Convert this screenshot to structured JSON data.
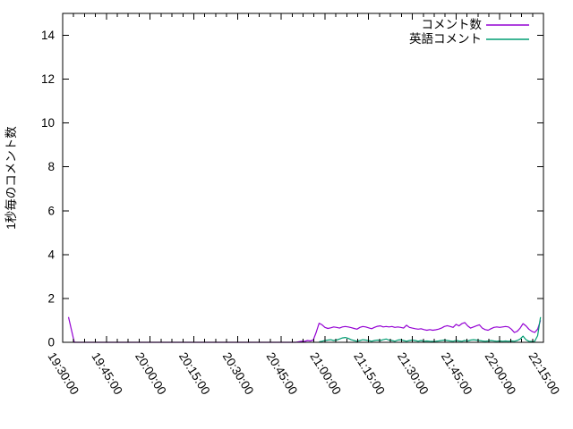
{
  "chart_data": {
    "type": "line",
    "title": "",
    "xlabel": "",
    "ylabel": "1秒毎のコメント数",
    "ylim": [
      0,
      15
    ],
    "ytick_values": [
      0,
      2,
      4,
      6,
      8,
      10,
      12,
      14
    ],
    "x_ticks": [
      "19:30:00",
      "19:45:00",
      "20:00:00",
      "20:15:00",
      "20:30:00",
      "20:45:00",
      "21:00:00",
      "21:15:00",
      "21:30:00",
      "21:45:00",
      "22:00:00",
      "22:15:00"
    ],
    "x_minor_divisions": 4,
    "x_tick_rotation_deg": 58,
    "grid": false,
    "legend_position": "top-right-inside",
    "background_color": "#ffffff",
    "axis_color": "#000000",
    "series": [
      {
        "name": "コメント数",
        "color": "#9400d3",
        "points": [
          [
            "19:32:00",
            1.15
          ],
          [
            "19:34:00",
            0
          ],
          [
            "19:40:00",
            0
          ],
          [
            "19:50:00",
            0
          ],
          [
            "20:00:00",
            0
          ],
          [
            "20:10:00",
            0
          ],
          [
            "20:20:00",
            0
          ],
          [
            "20:30:00",
            0
          ],
          [
            "20:40:00",
            0
          ],
          [
            "20:50:00",
            0
          ],
          [
            "20:52:00",
            0.05
          ],
          [
            "20:53:00",
            0.04
          ],
          [
            "20:54:00",
            0.08
          ],
          [
            "20:55:00",
            0.06
          ],
          [
            "20:56:00",
            0.1
          ],
          [
            "20:57:00",
            0.45
          ],
          [
            "20:58:00",
            0.87
          ],
          [
            "20:59:00",
            0.8
          ],
          [
            "21:00:00",
            0.68
          ],
          [
            "21:01:00",
            0.63
          ],
          [
            "21:02:00",
            0.66
          ],
          [
            "21:03:00",
            0.7
          ],
          [
            "21:04:00",
            0.68
          ],
          [
            "21:05:00",
            0.65
          ],
          [
            "21:06:00",
            0.7
          ],
          [
            "21:07:00",
            0.72
          ],
          [
            "21:08:00",
            0.7
          ],
          [
            "21:09:00",
            0.67
          ],
          [
            "21:10:00",
            0.63
          ],
          [
            "21:11:00",
            0.6
          ],
          [
            "21:12:00",
            0.68
          ],
          [
            "21:13:00",
            0.72
          ],
          [
            "21:14:00",
            0.7
          ],
          [
            "21:15:00",
            0.66
          ],
          [
            "21:16:00",
            0.62
          ],
          [
            "21:17:00",
            0.68
          ],
          [
            "21:18:00",
            0.73
          ],
          [
            "21:19:00",
            0.75
          ],
          [
            "21:20:00",
            0.7
          ],
          [
            "21:21:00",
            0.72
          ],
          [
            "21:22:00",
            0.7
          ],
          [
            "21:23:00",
            0.72
          ],
          [
            "21:24:00",
            0.68
          ],
          [
            "21:25:00",
            0.7
          ],
          [
            "21:26:00",
            0.68
          ],
          [
            "21:27:00",
            0.65
          ],
          [
            "21:28:00",
            0.78
          ],
          [
            "21:29:00",
            0.68
          ],
          [
            "21:30:00",
            0.65
          ],
          [
            "21:31:00",
            0.62
          ],
          [
            "21:32:00",
            0.6
          ],
          [
            "21:33:00",
            0.62
          ],
          [
            "21:34:00",
            0.58
          ],
          [
            "21:35:00",
            0.55
          ],
          [
            "21:36:00",
            0.58
          ],
          [
            "21:37:00",
            0.55
          ],
          [
            "21:38:00",
            0.57
          ],
          [
            "21:39:00",
            0.6
          ],
          [
            "21:40:00",
            0.65
          ],
          [
            "21:41:00",
            0.72
          ],
          [
            "21:42:00",
            0.76
          ],
          [
            "21:43:00",
            0.72
          ],
          [
            "21:44:00",
            0.68
          ],
          [
            "21:45:00",
            0.82
          ],
          [
            "21:46:00",
            0.75
          ],
          [
            "21:47:00",
            0.85
          ],
          [
            "21:48:00",
            0.9
          ],
          [
            "21:49:00",
            0.75
          ],
          [
            "21:50:00",
            0.65
          ],
          [
            "21:51:00",
            0.7
          ],
          [
            "21:52:00",
            0.75
          ],
          [
            "21:53:00",
            0.8
          ],
          [
            "21:54:00",
            0.65
          ],
          [
            "21:55:00",
            0.58
          ],
          [
            "21:56:00",
            0.55
          ],
          [
            "21:57:00",
            0.62
          ],
          [
            "21:58:00",
            0.68
          ],
          [
            "21:59:00",
            0.7
          ],
          [
            "22:00:00",
            0.68
          ],
          [
            "22:01:00",
            0.7
          ],
          [
            "22:02:00",
            0.72
          ],
          [
            "22:03:00",
            0.7
          ],
          [
            "22:04:00",
            0.6
          ],
          [
            "22:05:00",
            0.45
          ],
          [
            "22:06:00",
            0.5
          ],
          [
            "22:07:00",
            0.65
          ],
          [
            "22:08:00",
            0.85
          ],
          [
            "22:09:00",
            0.75
          ],
          [
            "22:10:00",
            0.6
          ],
          [
            "22:11:00",
            0.5
          ],
          [
            "22:12:00",
            0.45
          ],
          [
            "22:13:00",
            0.6
          ],
          [
            "22:14:00",
            1.0
          ]
        ]
      },
      {
        "name": "英語コメント",
        "color": "#009e73",
        "points": [
          [
            "20:58:00",
            0.02
          ],
          [
            "20:59:00",
            0.05
          ],
          [
            "21:00:00",
            0.08
          ],
          [
            "21:01:00",
            0.1
          ],
          [
            "21:02:00",
            0.12
          ],
          [
            "21:03:00",
            0.08
          ],
          [
            "21:04:00",
            0.1
          ],
          [
            "21:05:00",
            0.15
          ],
          [
            "21:06:00",
            0.2
          ],
          [
            "21:07:00",
            0.22
          ],
          [
            "21:08:00",
            0.18
          ],
          [
            "21:09:00",
            0.12
          ],
          [
            "21:10:00",
            0.08
          ],
          [
            "21:11:00",
            0.05
          ],
          [
            "21:12:00",
            0.08
          ],
          [
            "21:13:00",
            0.12
          ],
          [
            "21:14:00",
            0.1
          ],
          [
            "21:15:00",
            0.08
          ],
          [
            "21:16:00",
            0.05
          ],
          [
            "21:17:00",
            0.08
          ],
          [
            "21:18:00",
            0.1
          ],
          [
            "21:19:00",
            0.08
          ],
          [
            "21:20:00",
            0.12
          ],
          [
            "21:21:00",
            0.15
          ],
          [
            "21:22:00",
            0.1
          ],
          [
            "21:23:00",
            0.08
          ],
          [
            "21:24:00",
            0.05
          ],
          [
            "21:25:00",
            0.1
          ],
          [
            "21:26:00",
            0.12
          ],
          [
            "21:27:00",
            0.08
          ],
          [
            "21:28:00",
            0.05
          ],
          [
            "21:29:00",
            0.08
          ],
          [
            "21:30:00",
            0.1
          ],
          [
            "21:31:00",
            0.08
          ],
          [
            "21:32:00",
            0.05
          ],
          [
            "21:33:00",
            0.08
          ],
          [
            "21:34:00",
            0.05
          ],
          [
            "21:35:00",
            0.06
          ],
          [
            "21:36:00",
            0.05
          ],
          [
            "21:37:00",
            0.04
          ],
          [
            "21:38:00",
            0.05
          ],
          [
            "21:39:00",
            0.06
          ],
          [
            "21:40:00",
            0.08
          ],
          [
            "21:41:00",
            0.1
          ],
          [
            "21:42:00",
            0.08
          ],
          [
            "21:43:00",
            0.06
          ],
          [
            "21:44:00",
            0.05
          ],
          [
            "21:45:00",
            0.08
          ],
          [
            "21:46:00",
            0.06
          ],
          [
            "21:47:00",
            0.05
          ],
          [
            "21:48:00",
            0.08
          ],
          [
            "21:49:00",
            0.06
          ],
          [
            "21:50:00",
            0.1
          ],
          [
            "21:51:00",
            0.12
          ],
          [
            "21:52:00",
            0.1
          ],
          [
            "21:53:00",
            0.08
          ],
          [
            "21:54:00",
            0.06
          ],
          [
            "21:55:00",
            0.05
          ],
          [
            "21:56:00",
            0.06
          ],
          [
            "21:57:00",
            0.08
          ],
          [
            "21:58:00",
            0.06
          ],
          [
            "21:59:00",
            0.05
          ],
          [
            "22:00:00",
            0.06
          ],
          [
            "22:01:00",
            0.05
          ],
          [
            "22:02:00",
            0.06
          ],
          [
            "22:03:00",
            0.05
          ],
          [
            "22:04:00",
            0.06
          ],
          [
            "22:05:00",
            0.05
          ],
          [
            "22:06:00",
            0.08
          ],
          [
            "22:07:00",
            0.15
          ],
          [
            "22:08:00",
            0.28
          ],
          [
            "22:09:00",
            0.12
          ],
          [
            "22:10:00",
            0.05
          ],
          [
            "22:11:00",
            0.04
          ],
          [
            "22:12:00",
            0.05
          ],
          [
            "22:13:00",
            0.3
          ],
          [
            "22:14:00",
            1.15
          ]
        ]
      }
    ]
  }
}
